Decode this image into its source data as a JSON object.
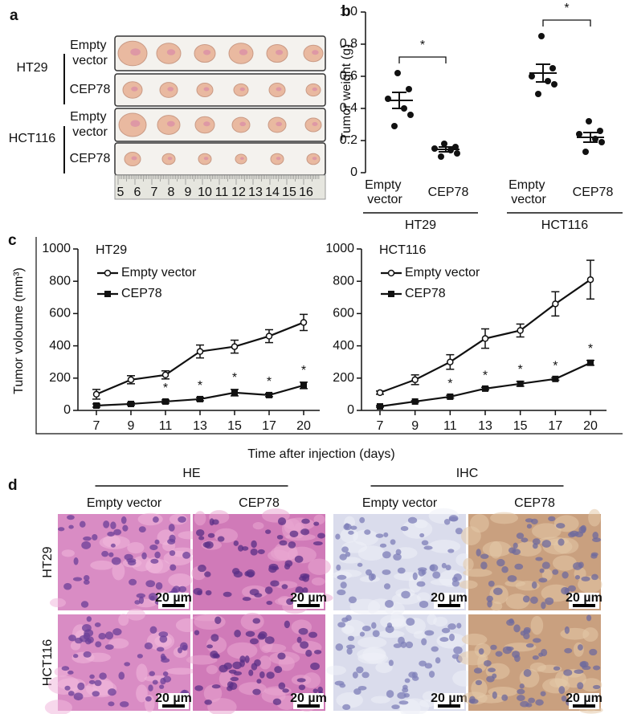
{
  "panel_labels": [
    "a",
    "b",
    "c",
    "d"
  ],
  "panel_a": {
    "groups": [
      {
        "cell_line": "HT29",
        "conditions": [
          "Empty vector",
          "CEP78"
        ]
      },
      {
        "cell_line": "HCT116",
        "conditions": [
          "Empty vector",
          "CEP78"
        ]
      }
    ],
    "ruler_labels": [
      5,
      6,
      7,
      8,
      9,
      10,
      11,
      12,
      13,
      14,
      15,
      16
    ]
  },
  "chart_data": [
    {
      "type": "dotplot",
      "ylabel": "Tumor weight (g)",
      "categories": [
        "Empty vector",
        "CEP78",
        "Empty vector",
        "CEP78"
      ],
      "groups": [
        "HT29",
        "HCT116"
      ],
      "points": [
        [
          0.62,
          0.52,
          0.46,
          0.4,
          0.36,
          0.29
        ],
        [
          0.18,
          0.16,
          0.15,
          0.14,
          0.12,
          0.1
        ],
        [
          0.85,
          0.65,
          0.6,
          0.57,
          0.55,
          0.49
        ],
        [
          0.32,
          0.26,
          0.24,
          0.21,
          0.19,
          0.13
        ]
      ],
      "means": [
        0.45,
        0.145,
        0.62,
        0.22
      ],
      "sem": [
        0.05,
        0.015,
        0.055,
        0.03
      ],
      "annotations": [
        "*",
        "*"
      ],
      "color": "#111111",
      "ylim": [
        0,
        1
      ],
      "yticks": [
        0,
        0.2,
        0.4,
        0.6,
        0.8,
        {
          "value": 1,
          "label": "1.0"
        }
      ]
    },
    {
      "type": "line",
      "title": "HT29",
      "categories": [
        7,
        9,
        11,
        13,
        15,
        17,
        20
      ],
      "series": [
        {
          "name": "Empty vector",
          "marker": "open-circle",
          "color": "#111111",
          "values": [
            100,
            190,
            220,
            365,
            395,
            460,
            545
          ],
          "errors": [
            30,
            25,
            25,
            40,
            40,
            40,
            50
          ]
        },
        {
          "name": "CEP78",
          "marker": "filled-square",
          "color": "#111111",
          "values": [
            30,
            40,
            55,
            70,
            110,
            95,
            155
          ],
          "errors": [
            10,
            8,
            10,
            10,
            20,
            10,
            20
          ]
        }
      ],
      "annotations": [
        null,
        null,
        "*",
        "*",
        "*",
        "*",
        "*"
      ],
      "ylim": [
        0,
        1000
      ],
      "yticks": [
        0,
        200,
        400,
        600,
        800,
        1000
      ]
    },
    {
      "type": "line",
      "title": "HCT116",
      "categories": [
        7,
        9,
        11,
        13,
        15,
        17,
        20
      ],
      "series": [
        {
          "name": "Empty vector",
          "marker": "open-circle",
          "color": "#111111",
          "values": [
            110,
            190,
            300,
            445,
            495,
            660,
            810
          ],
          "errors": [
            10,
            30,
            45,
            60,
            40,
            75,
            120
          ]
        },
        {
          "name": "CEP78",
          "marker": "filled-square",
          "color": "#111111",
          "values": [
            25,
            55,
            85,
            135,
            165,
            195,
            295
          ],
          "errors": [
            5,
            5,
            8,
            8,
            15,
            8,
            15
          ]
        }
      ],
      "annotations": [
        null,
        null,
        "*",
        "*",
        "*",
        "*",
        "*"
      ],
      "ylim": [
        0,
        1000
      ],
      "yticks": [
        0,
        200,
        400,
        600,
        800,
        1000
      ]
    }
  ],
  "panel_c": {
    "x_label": "Time after injection (days)",
    "y_label": "Tumor voloume (mm³)"
  },
  "panel_d": {
    "stains": [
      "HE",
      "IHC"
    ],
    "conditions": [
      "Empty vector",
      "CEP78"
    ],
    "cell_lines": [
      "HT29",
      "HCT116"
    ],
    "scale_bar": "20 µm"
  }
}
